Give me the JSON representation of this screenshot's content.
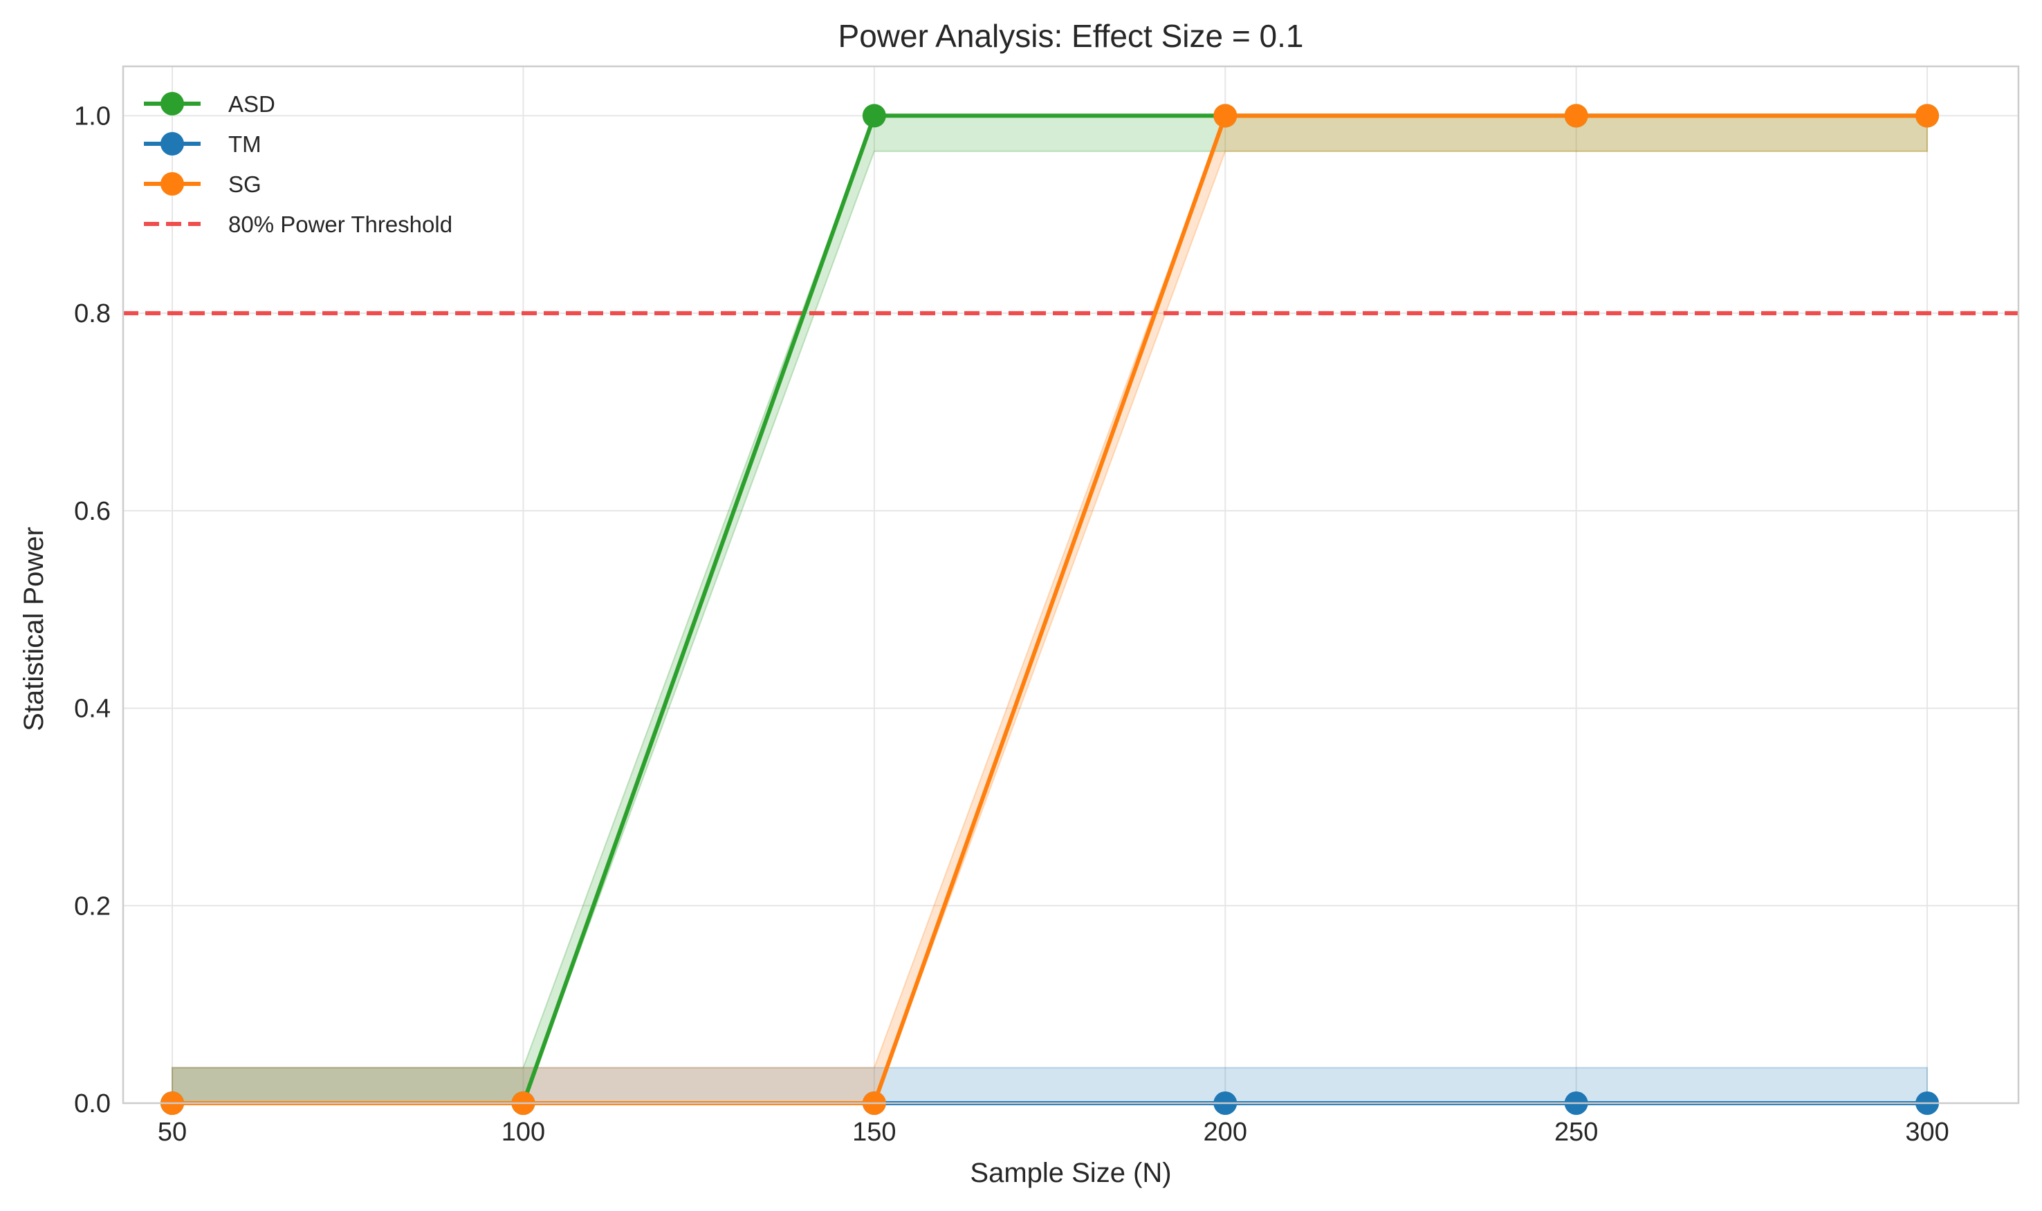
{
  "chart_data": {
    "type": "line",
    "title": "Power Analysis: Effect Size = 0.1",
    "xlabel": "Sample Size (N)",
    "ylabel": "Statistical Power",
    "x": [
      50,
      100,
      150,
      200,
      250,
      300
    ],
    "xticks": [
      50,
      100,
      150,
      200,
      250,
      300
    ],
    "xtick_labels": [
      "50",
      "100",
      "150",
      "200",
      "250",
      "300"
    ],
    "yticks": [
      0.0,
      0.2,
      0.4,
      0.6,
      0.8,
      1.0
    ],
    "ytick_labels": [
      "0.0",
      "0.2",
      "0.4",
      "0.6",
      "0.8",
      "1.0"
    ],
    "xlim": [
      43,
      313
    ],
    "ylim": [
      0.0,
      1.05
    ],
    "grid": true,
    "legend_position": "upper-left",
    "series": [
      {
        "name": "ASD",
        "color": "#2ca02c",
        "values": [
          0.0,
          0.0,
          1.0,
          1.0,
          1.0,
          1.0
        ],
        "ci_lower": [
          0.0,
          0.0,
          0.964,
          0.964,
          0.964,
          0.964
        ],
        "ci_upper": [
          0.036,
          0.036,
          1.0,
          1.0,
          1.0,
          1.0
        ]
      },
      {
        "name": "TM",
        "color": "#1f77b4",
        "values": [
          0.0,
          0.0,
          0.0,
          0.0,
          0.0,
          0.0
        ],
        "ci_lower": [
          0.0,
          0.0,
          0.0,
          0.0,
          0.0,
          0.0
        ],
        "ci_upper": [
          0.036,
          0.036,
          0.036,
          0.036,
          0.036,
          0.036
        ]
      },
      {
        "name": "SG",
        "color": "#ff7f0e",
        "values": [
          0.0,
          0.0,
          0.0,
          1.0,
          1.0,
          1.0
        ],
        "ci_lower": [
          0.0,
          0.0,
          0.0,
          0.964,
          0.964,
          0.964
        ],
        "ci_upper": [
          0.036,
          0.036,
          0.036,
          1.0,
          1.0,
          1.0
        ]
      }
    ],
    "threshold": {
      "name": "80% Power Threshold",
      "value": 0.8,
      "color": "#ef4444",
      "style": "dashed"
    }
  }
}
